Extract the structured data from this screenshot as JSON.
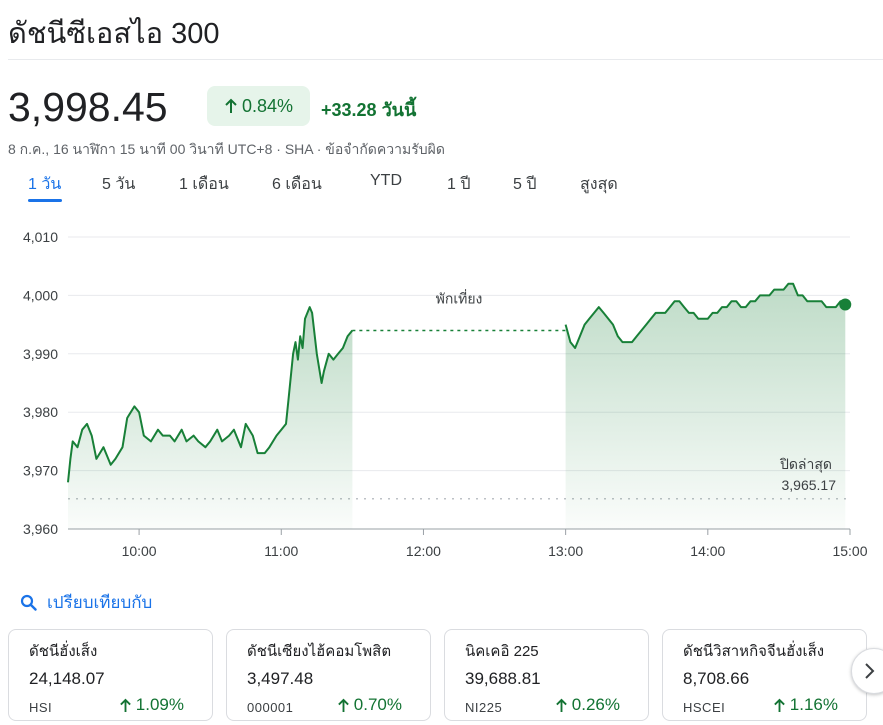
{
  "header": {
    "title": "ดัชนีซีเอสไอ 300",
    "price": "3,998.45",
    "change_pct": "0.84%",
    "change_abs": "+33.28",
    "change_suffix": "วันนี้",
    "meta": "8 ก.ค., 16 นาฬิกา 15 นาที 00 วินาที UTC+8 · SHA · ข้อจำกัดความรับผิด"
  },
  "tabs": [
    {
      "label": "1 วัน",
      "active": true
    },
    {
      "label": "5 วัน",
      "active": false
    },
    {
      "label": "1 เดือน",
      "active": false
    },
    {
      "label": "6 เดือน",
      "active": false
    },
    {
      "label": "YTD",
      "active": false
    },
    {
      "label": "1 ปี",
      "active": false
    },
    {
      "label": "5 ปี",
      "active": false
    },
    {
      "label": "สูงสุด",
      "active": false
    }
  ],
  "chart_data": {
    "type": "area",
    "ylim": [
      3960,
      4010
    ],
    "y_ticks": [
      "4,010",
      "4,000",
      "3,990",
      "3,980",
      "3,970",
      "3,960"
    ],
    "y_tick_values": [
      4010,
      4000,
      3990,
      3980,
      3970,
      3960
    ],
    "x_ticks": [
      "10:00",
      "11:00",
      "12:00",
      "13:00",
      "14:00",
      "15:00"
    ],
    "x_tick_values": [
      "10:00",
      "11:00",
      "12:00",
      "13:00",
      "14:00",
      "15:00"
    ],
    "break_label": "พักเที่ยง",
    "previous_close_label": "ปิดล่าสุด",
    "previous_close_value_text": "3,965.17",
    "previous_close": 3965.17,
    "color": "#188038",
    "morning_session": {
      "x": [
        "09:30",
        "09:31",
        "09:32",
        "09:34",
        "09:36",
        "09:38",
        "09:40",
        "09:42",
        "09:45",
        "09:48",
        "09:50",
        "09:53",
        "09:55",
        "09:58",
        "10:00",
        "10:02",
        "10:05",
        "10:08",
        "10:10",
        "10:13",
        "10:15",
        "10:18",
        "10:20",
        "10:23",
        "10:25",
        "10:28",
        "10:30",
        "10:33",
        "10:35",
        "10:38",
        "10:40",
        "10:43",
        "10:45",
        "10:48",
        "10:50",
        "10:53",
        "10:55",
        "10:58",
        "11:00",
        "11:02",
        "11:03",
        "11:05",
        "11:06",
        "11:07",
        "11:08",
        "11:09",
        "11:10",
        "11:12",
        "11:13",
        "11:15",
        "11:17",
        "11:18",
        "11:20",
        "11:22",
        "11:24",
        "11:26",
        "11:28",
        "11:30"
      ],
      "y": [
        3968,
        3972,
        3975,
        3974,
        3977,
        3978,
        3976,
        3972,
        3974,
        3971,
        3972,
        3974,
        3979,
        3981,
        3980,
        3976,
        3975,
        3977,
        3976,
        3976,
        3975,
        3977,
        3975,
        3976,
        3975,
        3974,
        3975,
        3977,
        3975,
        3976,
        3977,
        3974,
        3978,
        3976,
        3973,
        3973,
        3974,
        3976,
        3977,
        3978,
        3982,
        3990,
        3992,
        3989,
        3993,
        3991,
        3996,
        3998,
        3997,
        3990,
        3985,
        3987,
        3990,
        3989,
        3990,
        3991,
        3993,
        3994
      ]
    },
    "afternoon_session": {
      "x": [
        "13:00",
        "13:02",
        "13:04",
        "13:06",
        "13:08",
        "13:10",
        "13:12",
        "13:14",
        "13:16",
        "13:18",
        "13:20",
        "13:22",
        "13:24",
        "13:26",
        "13:28",
        "13:30",
        "13:32",
        "13:34",
        "13:36",
        "13:38",
        "13:40",
        "13:42",
        "13:44",
        "13:46",
        "13:48",
        "13:50",
        "13:52",
        "13:54",
        "13:56",
        "13:58",
        "14:00",
        "14:02",
        "14:04",
        "14:06",
        "14:08",
        "14:10",
        "14:12",
        "14:14",
        "14:16",
        "14:18",
        "14:20",
        "14:22",
        "14:24",
        "14:26",
        "14:28",
        "14:30",
        "14:32",
        "14:34",
        "14:36",
        "14:38",
        "14:40",
        "14:42",
        "14:44",
        "14:46",
        "14:48",
        "14:50",
        "14:52",
        "14:54",
        "14:56",
        "14:58"
      ],
      "y": [
        3995,
        3992,
        3991,
        3993,
        3995,
        3996,
        3997,
        3998,
        3997,
        3996,
        3995,
        3993,
        3992,
        3992,
        3992,
        3993,
        3994,
        3995,
        3996,
        3997,
        3997,
        3997,
        3998,
        3999,
        3999,
        3998,
        3997,
        3997,
        3996,
        3996,
        3996,
        3997,
        3997,
        3998,
        3998,
        3999,
        3999,
        3998,
        3998,
        3999,
        3999,
        4000,
        4000,
        4000,
        4001,
        4001,
        4001,
        4002,
        4002,
        4000,
        4000,
        3999,
        3999,
        3999,
        3999,
        3998,
        3998,
        3998,
        3999,
        3999
      ]
    },
    "last_point": {
      "x": "14:58",
      "y": 3998.45
    }
  },
  "compare": {
    "label": "เปรียบเทียบกับ"
  },
  "cards": [
    {
      "name": "ดัชนีฮั่งเส็ง",
      "value": "24,148.07",
      "symbol": "HSI",
      "change": "1.09%"
    },
    {
      "name": "ดัชนีเซียงไฮ้คอมโพสิต",
      "value": "3,497.48",
      "symbol": "000001",
      "change": "0.70%"
    },
    {
      "name": "นิคเคอิ 225",
      "value": "39,688.81",
      "symbol": "NI225",
      "change": "0.26%"
    },
    {
      "name": "ดัชนีวิสาหกิจจีนฮั่งเส็ง",
      "value": "8,708.66",
      "symbol": "HSCEI",
      "change": "1.16%"
    }
  ],
  "icons": {
    "up_arrow": "arrow-up-icon",
    "search": "search-icon",
    "next": "chevron-right-icon"
  },
  "colors": {
    "positive": "#137333",
    "accent": "#1a73e8",
    "badge_bg": "#e6f4ea"
  }
}
